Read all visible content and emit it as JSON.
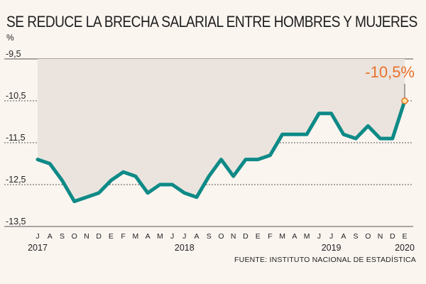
{
  "title": "SE REDUCE LA BRECHA SALARIAL ENTRE HOMBRES Y MUJERES",
  "unit": "%",
  "source": "FUENTE: INSTITUTO NACIONAL DE ESTADÍSTICA",
  "colors": {
    "line": "#0e8a87",
    "area": "#ebe4de",
    "grid": "#555555",
    "accent": "#e8712a",
    "background": "#fbf5f0"
  },
  "chart_data": {
    "type": "area",
    "title": "SE REDUCE LA BRECHA SALARIAL ENTRE HOMBRES Y MUJERES",
    "ylabel": "%",
    "ylim": [
      -13.5,
      -9.5
    ],
    "yticks": [
      -9.5,
      -10.5,
      -11.5,
      -12.5,
      -13.5
    ],
    "ytick_labels": [
      "-9,5",
      "-10,5",
      "-11,5",
      "-12,5",
      "-13,5"
    ],
    "grid": true,
    "month_labels": [
      "J",
      "A",
      "S",
      "O",
      "N",
      "D",
      "E",
      "F",
      "M",
      "A",
      "M",
      "J",
      "J",
      "A",
      "S",
      "O",
      "N",
      "D",
      "E",
      "F",
      "M",
      "A",
      "M",
      "J",
      "J",
      "A",
      "S",
      "O",
      "N",
      "D",
      "E"
    ],
    "year_labels": [
      {
        "label": "2017",
        "index": 0
      },
      {
        "label": "2018",
        "index": 12
      },
      {
        "label": "2019",
        "index": 24
      },
      {
        "label": "2020",
        "index": 30
      }
    ],
    "x": [
      "2017-07",
      "2017-08",
      "2017-09",
      "2017-10",
      "2017-11",
      "2017-12",
      "2018-01",
      "2018-02",
      "2018-03",
      "2018-04",
      "2018-05",
      "2018-06",
      "2018-07",
      "2018-08",
      "2018-09",
      "2018-10",
      "2018-11",
      "2018-12",
      "2019-01",
      "2019-02",
      "2019-03",
      "2019-04",
      "2019-05",
      "2019-06",
      "2019-07",
      "2019-08",
      "2019-09",
      "2019-10",
      "2019-11",
      "2019-12",
      "2020-01"
    ],
    "series": [
      {
        "values": [
          -11.9,
          -12.0,
          -12.4,
          -12.9,
          -12.8,
          -12.7,
          -12.4,
          -12.2,
          -12.3,
          -12.7,
          -12.5,
          -12.5,
          -12.7,
          -12.8,
          -12.3,
          -11.9,
          -12.3,
          -11.9,
          -11.9,
          -11.8,
          -11.3,
          -11.3,
          -11.3,
          -10.8,
          -10.8,
          -11.3,
          -11.4,
          -11.1,
          -11.4,
          -11.4,
          -10.5
        ]
      }
    ],
    "annotation": {
      "label": "-10,5%",
      "x": "2020-01",
      "y": -10.5
    }
  }
}
